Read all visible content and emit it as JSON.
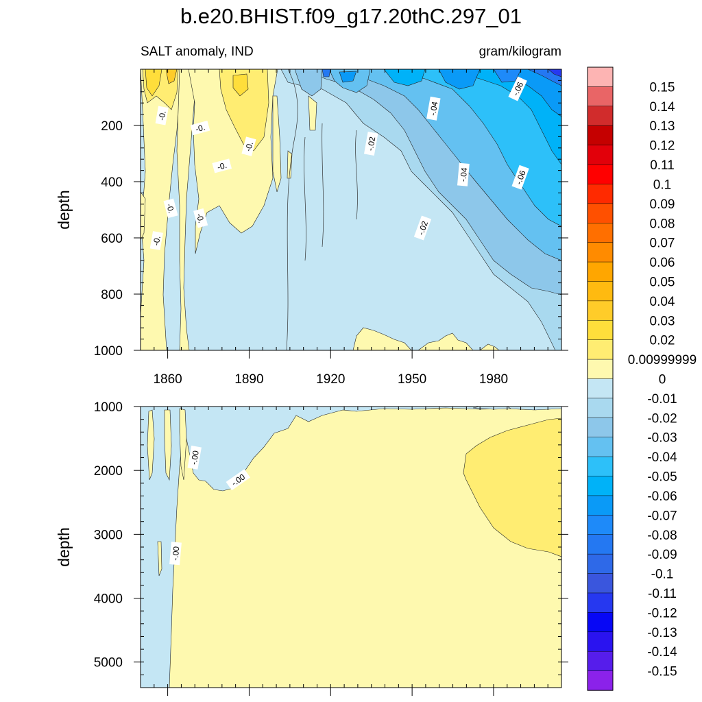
{
  "chart_data": {
    "type": "contour",
    "title": "b.e20.BHIST.f09_g17.20thC.297_01",
    "subtitle_left": "SALT anomaly, IND",
    "subtitle_right": "gram/kilogram",
    "xlim": [
      1850,
      2005
    ],
    "x_ticks": [
      1860,
      1890,
      1920,
      1950,
      1980
    ],
    "panels": [
      {
        "name": "upper",
        "ylabel": "depth",
        "ylim": [
          0,
          1000
        ],
        "y_ticks": [
          200,
          400,
          600,
          800,
          1000
        ],
        "contour_labels": [
          {
            "text": "-0.",
            "x": 1858,
            "y": 165,
            "angle": -80
          },
          {
            "text": "-0.",
            "x": 1872,
            "y": 210,
            "angle": -15
          },
          {
            "text": "-0.",
            "x": 1890,
            "y": 275,
            "angle": -75
          },
          {
            "text": "-0.",
            "x": 1880,
            "y": 345,
            "angle": -15
          },
          {
            "text": "-0.",
            "x": 1861,
            "y": 495,
            "angle": 75
          },
          {
            "text": "-0.",
            "x": 1872,
            "y": 530,
            "angle": 75
          },
          {
            "text": "-0.",
            "x": 1856,
            "y": 610,
            "angle": -80
          },
          {
            "text": "-.02",
            "x": 1935,
            "y": 265,
            "angle": -80
          },
          {
            "text": "-.04",
            "x": 1958,
            "y": 140,
            "angle": -80
          },
          {
            "text": "-.04",
            "x": 1969,
            "y": 375,
            "angle": -85
          },
          {
            "text": "-.02",
            "x": 1954,
            "y": 565,
            "angle": -70
          },
          {
            "text": "-.06",
            "x": 1989,
            "y": 70,
            "angle": -65
          },
          {
            "text": "-.06",
            "x": 1990,
            "y": 385,
            "angle": -70
          }
        ]
      },
      {
        "name": "lower",
        "ylabel": "depth",
        "ylim": [
          1000,
          5400
        ],
        "y_ticks": [
          1000,
          2000,
          3000,
          4000,
          5000
        ],
        "contour_labels": [
          {
            "text": "-.00",
            "x": 1870,
            "y": 1800,
            "angle": -80
          },
          {
            "text": "-.00",
            "x": 1886,
            "y": 2150,
            "angle": -35
          },
          {
            "text": "-.00",
            "x": 1863,
            "y": 3300,
            "angle": -85
          }
        ]
      }
    ],
    "colorbar": {
      "labels": [
        "0.15",
        "0.14",
        "0.13",
        "0.12",
        "0.11",
        "0.1",
        "0.09",
        "0.08",
        "0.07",
        "0.06",
        "0.05",
        "0.04",
        "0.03",
        "0.02",
        "0.00999999",
        "0",
        "-0.01",
        "-0.02",
        "-0.03",
        "-0.04",
        "-0.05",
        "-0.06",
        "-0.07",
        "-0.08",
        "-0.09",
        "-0.1",
        "-0.11",
        "-0.12",
        "-0.13",
        "-0.14",
        "-0.15"
      ],
      "colors": [
        "#FDB4B3",
        "#E96566",
        "#D12C2C",
        "#C50000",
        "#E2000A",
        "#FF0000",
        "#FF2A00",
        "#FF5000",
        "#FF6F00",
        "#FF8B00",
        "#FFA600",
        "#FFBA10",
        "#FFCC29",
        "#FFDE3B",
        "#FFED72",
        "#FEF9AF",
        "#C4E6F4",
        "#A9D9EF",
        "#8DC7EA",
        "#64C1F1",
        "#2DC0F9",
        "#00B2F8",
        "#0A9AF7",
        "#1E8AF9",
        "#2478F2",
        "#2E69E8",
        "#3A56DD",
        "#2638F0",
        "#0707F5",
        "#2A13F0",
        "#561DEB",
        "#8B22EA"
      ]
    }
  }
}
